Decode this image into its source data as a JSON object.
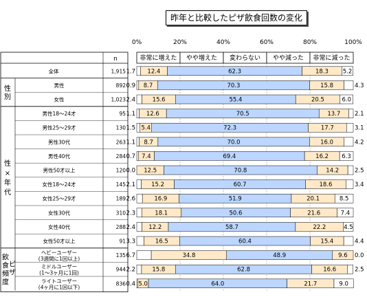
{
  "chart_data": {
    "type": "bar",
    "title": "昨年と比較したピザ飲食回数の変化",
    "stacked": true,
    "orientation": "horizontal",
    "xlim": [
      0,
      100
    ],
    "x_ticks": [
      "0%",
      "20%",
      "40%",
      "60%",
      "80%",
      "100%"
    ],
    "n_header": "n",
    "legend": [
      "非常に増えた",
      "やや増えた",
      "変わらない",
      "やや減った",
      "非常に減った"
    ],
    "colors": [
      "#ffffff",
      "#ffe9c8",
      "#bcd6ff",
      "#ffe9c8",
      "#ffffff"
    ],
    "groups": [
      {
        "label": "",
        "rows": [
          0
        ]
      },
      {
        "label": "性別",
        "rows": [
          1,
          2
        ]
      },
      {
        "label": "性×年代",
        "rows": [
          3,
          4,
          5,
          6,
          7,
          8,
          9,
          10,
          11,
          12
        ]
      },
      {
        "label": "飲食頻度ピザ",
        "rows": [
          13,
          14,
          15
        ]
      }
    ],
    "rows": [
      {
        "label": "全体",
        "n": "1,915",
        "values": [
          1.7,
          12.4,
          62.3,
          18.3,
          5.2
        ]
      },
      {
        "label": "男性",
        "n": "892",
        "values": [
          0.9,
          8.7,
          70.3,
          15.8,
          4.3
        ]
      },
      {
        "label": "女性",
        "n": "1,023",
        "values": [
          2.4,
          15.6,
          55.4,
          20.5,
          6.0
        ]
      },
      {
        "label": "男性18～24才",
        "n": "95",
        "values": [
          1.1,
          12.6,
          70.5,
          13.7,
          2.1
        ]
      },
      {
        "label": "男性25～29才",
        "n": "130",
        "values": [
          1.5,
          5.4,
          72.3,
          17.7,
          3.1
        ]
      },
      {
        "label": "男性30代",
        "n": "263",
        "values": [
          1.1,
          8.7,
          70.0,
          16.0,
          4.2
        ]
      },
      {
        "label": "男性40代",
        "n": "284",
        "values": [
          0.7,
          7.4,
          69.4,
          16.2,
          6.3
        ]
      },
      {
        "label": "男性50才以上",
        "n": "120",
        "values": [
          0.0,
          12.5,
          70.8,
          14.2,
          2.5
        ]
      },
      {
        "label": "女性18～24才",
        "n": "145",
        "values": [
          2.1,
          15.2,
          60.7,
          18.6,
          3.4
        ]
      },
      {
        "label": "女性25～29才",
        "n": "189",
        "values": [
          2.6,
          16.9,
          51.9,
          20.1,
          8.5
        ]
      },
      {
        "label": "女性30代",
        "n": "310",
        "values": [
          2.3,
          18.1,
          50.6,
          21.6,
          7.4
        ]
      },
      {
        "label": "女性40代",
        "n": "288",
        "values": [
          2.4,
          12.2,
          58.7,
          22.2,
          4.5
        ]
      },
      {
        "label": "女性50才以上",
        "n": "91",
        "values": [
          3.3,
          16.5,
          60.4,
          15.4,
          4.4
        ]
      },
      {
        "label": "ヘビーユーザー\n(3週間に1回以上)",
        "n": "135",
        "values": [
          6.7,
          34.8,
          48.9,
          9.6,
          0.0
        ]
      },
      {
        "label": "ミドルユーザー\n(1～3ヶ月に1回)",
        "n": "944",
        "values": [
          2.2,
          15.8,
          62.8,
          16.6,
          2.5
        ]
      },
      {
        "label": "ライトユーザー\n(4ヶ月に1回以下)",
        "n": "836",
        "values": [
          0.4,
          5.0,
          64.0,
          21.7,
          9.0
        ]
      }
    ]
  }
}
